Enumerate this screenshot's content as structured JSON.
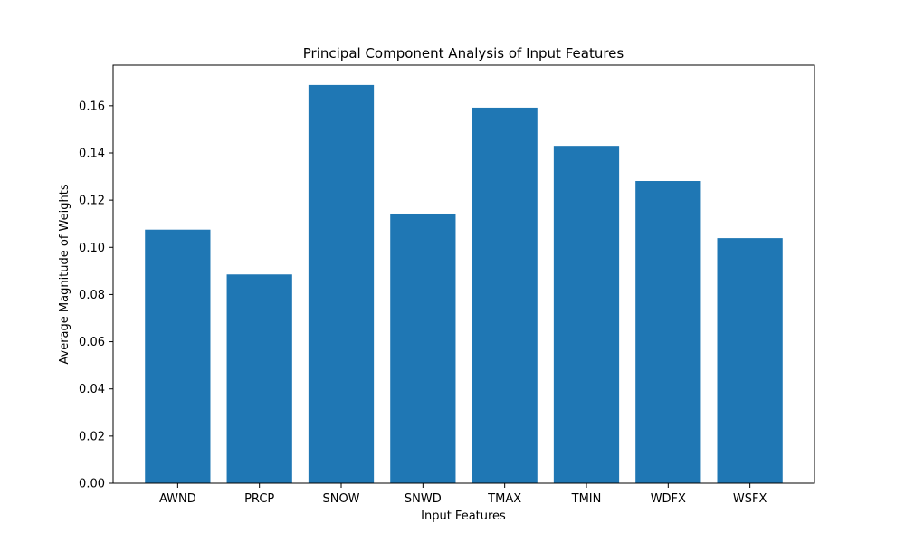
{
  "chart_data": {
    "type": "bar",
    "title": "Principal Component Analysis of Input Features",
    "xlabel": "Input Features",
    "ylabel": "Average Magnitude of Weights",
    "categories": [
      "AWND",
      "PRCP",
      "SNOW",
      "SNWD",
      "TMAX",
      "TMIN",
      "WDFX",
      "WSFX"
    ],
    "values": [
      0.1075,
      0.0885,
      0.1688,
      0.1143,
      0.1592,
      0.143,
      0.1281,
      0.1039
    ],
    "ylim": [
      0,
      0.1772
    ],
    "yticks": [
      0.0,
      0.02,
      0.04,
      0.06,
      0.08,
      0.1,
      0.12,
      0.14,
      0.16
    ],
    "ytick_labels": [
      "0.00",
      "0.02",
      "0.04",
      "0.06",
      "0.08",
      "0.10",
      "0.12",
      "0.14",
      "0.16"
    ],
    "grid": false,
    "legend": "none",
    "bar_color": "#1f77b4"
  }
}
